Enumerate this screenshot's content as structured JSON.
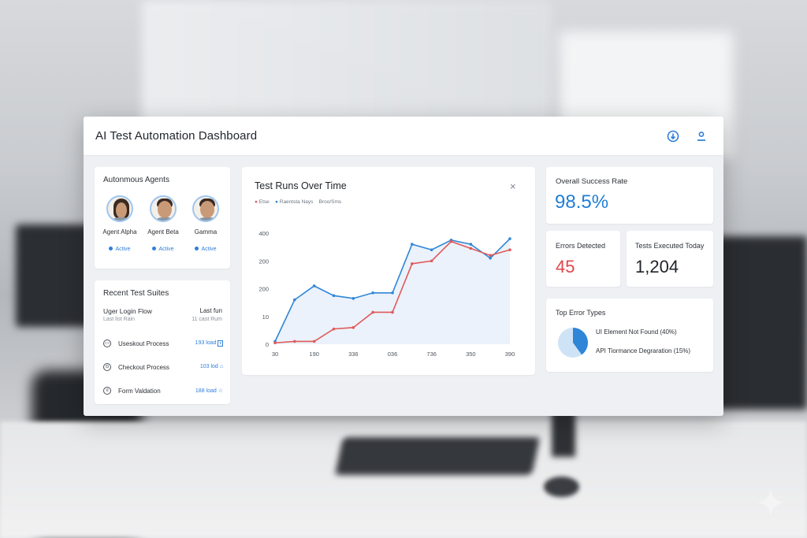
{
  "app": {
    "title": "AI Test Automation Dashboard"
  },
  "icons": {
    "topbar": [
      "download-icon",
      "user-icon"
    ],
    "chart_close": "close-icon"
  },
  "agents": {
    "title": "Autonmous Agents",
    "items": [
      {
        "name": "Agent Alpha",
        "status": "Active"
      },
      {
        "name": "Agent Beta",
        "status": "Active"
      },
      {
        "name": "Gamma",
        "status": "Active"
      }
    ]
  },
  "suites": {
    "title": "Recent Test Suites",
    "header": {
      "name": "Uger Login Flow",
      "sub": "Last list Rain",
      "right": "Last fun",
      "right_sub": "11 cast Rum"
    },
    "items": [
      {
        "name": "Useskout Process",
        "count": "193 load"
      },
      {
        "name": "Checkout Process",
        "count": "103 lod"
      },
      {
        "name": "Form Valdation",
        "count": "188 load"
      }
    ]
  },
  "chart": {
    "title": "Test Runs Over Time",
    "legend": [
      "Etse",
      "Raentsta Nays",
      "Broo/Sms"
    ]
  },
  "chart_data": {
    "type": "line",
    "title": "Test Runs Over Time",
    "x_tick_labels": [
      "30",
      "190",
      "336",
      "036",
      "736",
      "350",
      "390"
    ],
    "y_tick_labels": [
      "0",
      "10",
      "200",
      "200",
      "400"
    ],
    "series": [
      {
        "name": "Raentsta Nays",
        "color": "#2f86d8",
        "values": [
          10,
          160,
          210,
          175,
          165,
          185,
          185,
          360,
          340,
          375,
          360,
          310,
          380
        ]
      },
      {
        "name": "Etse",
        "color": "#e05a5a",
        "values": [
          5,
          10,
          10,
          55,
          60,
          115,
          115,
          290,
          300,
          370,
          345,
          320,
          340
        ]
      }
    ]
  },
  "stats": {
    "success": {
      "label": "Overall Success Rate",
      "value": "98.5%"
    },
    "errors": {
      "label": "Errors Detected",
      "value": "45"
    },
    "executed": {
      "label": "Tests Executed Today",
      "value": "1,204"
    }
  },
  "errors": {
    "title": "Top Error Types",
    "items": [
      {
        "label": "UI Element Not Found (40%)",
        "share": 0.4
      },
      {
        "label": "API Tiormance Degraration (15%)",
        "share": 0.15
      }
    ]
  },
  "colors": {
    "accent": "#1f7fd6",
    "error": "#e0464b",
    "line_blue": "#2f86d8",
    "line_red": "#e05a5a"
  }
}
